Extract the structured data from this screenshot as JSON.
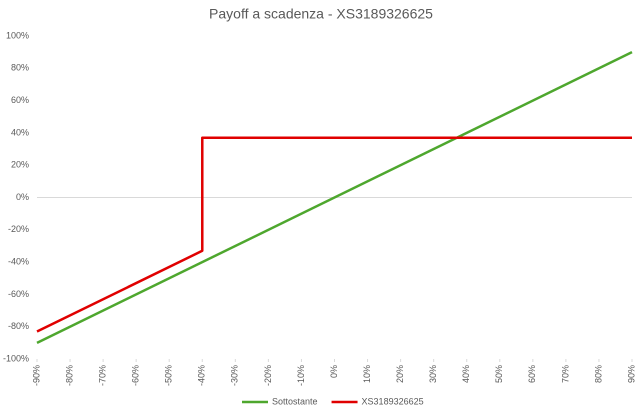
{
  "chart_data": {
    "type": "line",
    "title": "Payoff a scadenza - XS3189326625",
    "xlim": [
      -90,
      90
    ],
    "xticks": [
      {
        "value": -90,
        "label": "-90%"
      },
      {
        "value": -80,
        "label": "-80%"
      },
      {
        "value": -70,
        "label": "-70%"
      },
      {
        "value": -60,
        "label": "-60%"
      },
      {
        "value": -50,
        "label": "-50%"
      },
      {
        "value": -40,
        "label": "-40%"
      },
      {
        "value": -30,
        "label": "-30%"
      },
      {
        "value": -20,
        "label": "-20%"
      },
      {
        "value": -10,
        "label": "-10%"
      },
      {
        "value": 0,
        "label": "0%"
      },
      {
        "value": 10,
        "label": "10%"
      },
      {
        "value": 20,
        "label": "20%"
      },
      {
        "value": 30,
        "label": "30%"
      },
      {
        "value": 40,
        "label": "40%"
      },
      {
        "value": 50,
        "label": "50%"
      },
      {
        "value": 60,
        "label": "60%"
      },
      {
        "value": 70,
        "label": "70%"
      },
      {
        "value": 80,
        "label": "80%"
      },
      {
        "value": 90,
        "label": "90%"
      }
    ],
    "ylim": [
      -100,
      100
    ],
    "yticks": [
      {
        "value": -100,
        "label": "-100%"
      },
      {
        "value": -80,
        "label": "-80%"
      },
      {
        "value": -60,
        "label": "-60%"
      },
      {
        "value": -40,
        "label": "-40%"
      },
      {
        "value": -20,
        "label": "-20%"
      },
      {
        "value": 0,
        "label": "0%"
      },
      {
        "value": 20,
        "label": "20%"
      },
      {
        "value": 40,
        "label": "40%"
      },
      {
        "value": 60,
        "label": "60%"
      },
      {
        "value": 80,
        "label": "80%"
      },
      {
        "value": 100,
        "label": "100%"
      }
    ],
    "series": [
      {
        "name": "Sottostante",
        "color": "#4ea72e",
        "x": [
          -90,
          90
        ],
        "values": [
          -90,
          90
        ]
      },
      {
        "name": "XS3189326625",
        "color": "#e00000",
        "x": [
          -90,
          -40,
          -40,
          90
        ],
        "values": [
          -83,
          -33,
          37,
          37
        ]
      }
    ],
    "legend": "bottom"
  }
}
